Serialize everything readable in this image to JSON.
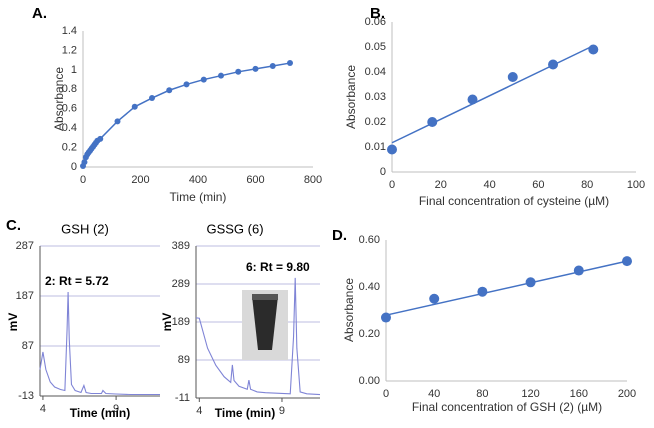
{
  "chart_data": [
    {
      "type": "line",
      "label": "A.",
      "xlabel": "Time (min)",
      "ylabel": "Absorbance",
      "color": "#4472c4",
      "markers": true,
      "grid": false,
      "x": [
        0,
        5,
        10,
        15,
        20,
        25,
        30,
        35,
        40,
        45,
        50,
        60,
        120,
        180,
        240,
        300,
        360,
        420,
        480,
        540,
        600,
        660,
        720
      ],
      "values": [
        0.01,
        0.05,
        0.1,
        0.13,
        0.15,
        0.17,
        0.19,
        0.21,
        0.23,
        0.25,
        0.27,
        0.29,
        0.47,
        0.62,
        0.71,
        0.79,
        0.85,
        0.9,
        0.94,
        0.98,
        1.01,
        1.04,
        1.07
      ],
      "xlim": [
        0,
        800
      ],
      "xticks": [
        0,
        200,
        400,
        600,
        800
      ],
      "ylim": [
        0,
        1.4
      ],
      "yticks": [
        0,
        0.2,
        0.4,
        0.6,
        0.8,
        1,
        1.2,
        1.4
      ]
    },
    {
      "type": "scatter",
      "label": "B.",
      "xlabel": "Final concentration of cysteine (µM)",
      "ylabel": "Absorbance",
      "color": "#4472c4",
      "grid": false,
      "x": [
        0,
        16.5,
        33,
        49.5,
        66,
        82.5
      ],
      "values": [
        0.009,
        0.02,
        0.029,
        0.038,
        0.043,
        0.049
      ],
      "trendline": {
        "x": [
          0,
          82.5
        ],
        "y": [
          0.0117,
          0.0505
        ]
      },
      "xlim": [
        0,
        100
      ],
      "xticks": [
        0,
        20,
        40,
        60,
        80,
        100
      ],
      "ylim": [
        0,
        0.06
      ],
      "yticks": [
        0,
        0.01,
        0.02,
        0.03,
        0.04,
        0.05,
        0.06
      ]
    },
    {
      "type": "chromatogram",
      "label": "C.",
      "title": "GSH (2)",
      "annotation": "2: Rt = 5.72",
      "xlabel": "Time (min)",
      "ylabel": "mV",
      "color": "#7f84d6",
      "grid": true,
      "x": [
        3.8,
        4,
        4.2,
        4.5,
        4.8,
        5.2,
        5.5,
        5.65,
        5.72,
        5.8,
        5.95,
        6.2,
        6.6,
        6.8,
        6.95,
        7.3,
        8,
        8.1,
        8.3,
        9,
        10,
        11,
        12
      ],
      "values": [
        40,
        75,
        40,
        15,
        5,
        0,
        -2,
        120,
        195,
        100,
        10,
        -2,
        -6,
        8,
        -6,
        -8,
        -8,
        -2,
        -8,
        -9,
        -10,
        -10,
        -10
      ],
      "xlim": [
        3.8,
        12
      ],
      "xticks": [
        4,
        9
      ],
      "ylim": [
        -13,
        287
      ],
      "yticks": [
        -13,
        87,
        187,
        287
      ]
    },
    {
      "type": "chromatogram",
      "title": "GSSG (6)",
      "annotation": "6: Rt = 9.80",
      "xlabel": "Time (min)",
      "ylabel": "mV",
      "color": "#7f84d6",
      "grid": true,
      "x": [
        3.8,
        4,
        4.5,
        5,
        5.5,
        5.9,
        6.0,
        6.1,
        6.4,
        6.9,
        7.0,
        7.1,
        7.5,
        8,
        8.5,
        9,
        9.5,
        9.7,
        9.8,
        9.9,
        10.1,
        10.5,
        11.3
      ],
      "values": [
        200,
        199,
        120,
        75,
        45,
        30,
        76,
        35,
        20,
        12,
        36,
        12,
        5,
        3,
        2,
        1,
        0,
        150,
        305,
        120,
        5,
        0,
        -2
      ],
      "xlim": [
        3.8,
        11.3
      ],
      "xticks": [
        4,
        9
      ],
      "ylim": [
        -11,
        389
      ],
      "yticks": [
        -11,
        89,
        189,
        289,
        389
      ]
    },
    {
      "type": "scatter",
      "label": "D.",
      "xlabel": "Final concentration of GSH (2) (µM)",
      "ylabel": "Absorbance",
      "color": "#4472c4",
      "grid": false,
      "x": [
        0,
        40,
        80,
        120,
        160,
        200
      ],
      "values": [
        0.27,
        0.35,
        0.38,
        0.42,
        0.47,
        0.51
      ],
      "trendline": {
        "x": [
          0,
          200
        ],
        "y": [
          0.28,
          0.51
        ]
      },
      "xlim": [
        0,
        200
      ],
      "xticks": [
        0,
        40,
        80,
        120,
        160,
        200
      ],
      "ylim": [
        0,
        0.6
      ],
      "yticks": [
        {
          "value": 0,
          "label": "0.00"
        },
        {
          "value": 0.2,
          "label": "0.20"
        },
        {
          "value": 0.4,
          "label": "0.40"
        },
        {
          "value": 0.6,
          "label": "0.60"
        }
      ]
    }
  ]
}
